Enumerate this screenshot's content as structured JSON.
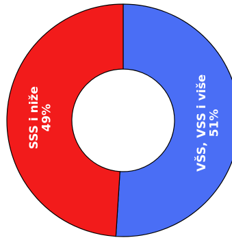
{
  "chart_data": {
    "type": "pie",
    "variant": "donut",
    "title": "",
    "slices": [
      {
        "name": "VŠS, VSS i više",
        "value": 51,
        "value_label": "51%",
        "color": "#4a6ef5"
      },
      {
        "name": "SSS i niže",
        "value": 49,
        "value_label": "49%",
        "color": "#f21b1b"
      }
    ],
    "start": "top",
    "direction": "clockwise",
    "legend": "none",
    "labels": "inside-rotated"
  }
}
